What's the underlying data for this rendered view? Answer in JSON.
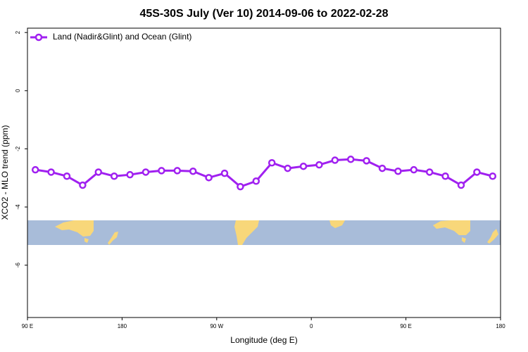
{
  "chart_data": {
    "type": "line",
    "title": "45S-30S July (Ver 10)   2014-09-06 to 2022-02-28",
    "x_label": "Longitude (deg E)",
    "y_label": "XCO2 - MLO trend (ppm)",
    "x": [
      97.5,
      112.5,
      127.5,
      142.5,
      157.5,
      172.5,
      187.5,
      202.5,
      217.5,
      232.5,
      247.5,
      262.5,
      277.5,
      292.5,
      307.5,
      322.5,
      337.5,
      352.5,
      367.5,
      382.5,
      397.5,
      412.5,
      427.5,
      442.5,
      457.5,
      472.5,
      487.5,
      502.5,
      517.5,
      532.5
    ],
    "series": [
      {
        "name": "Land (Nadir&Glint) and Ocean (Glint)",
        "color": "#a020f0",
        "values": [
          -2.72,
          -2.8,
          -2.94,
          -3.25,
          -2.8,
          -2.94,
          -2.89,
          -2.8,
          -2.75,
          -2.75,
          -2.77,
          -2.99,
          -2.84,
          -3.3,
          -3.11,
          -2.48,
          -2.67,
          -2.6,
          -2.55,
          -2.39,
          -2.36,
          -2.41,
          -2.67,
          -2.77,
          -2.72,
          -2.8,
          -2.94,
          -3.25,
          -2.8,
          -2.94
        ]
      }
    ],
    "xlim": [
      90,
      540
    ],
    "ylim": [
      -7.8,
      2.15
    ],
    "xticks": [
      {
        "value": 90,
        "label": "90 E"
      },
      180,
      {
        "value": 270,
        "label": "90 W"
      },
      {
        "value": 360,
        "label": "0"
      },
      {
        "value": 450,
        "label": "90 E"
      },
      {
        "value": 540,
        "label": "180"
      }
    ],
    "yticks": [
      2,
      0,
      -2,
      -4,
      -6
    ],
    "legend": "top-left"
  }
}
